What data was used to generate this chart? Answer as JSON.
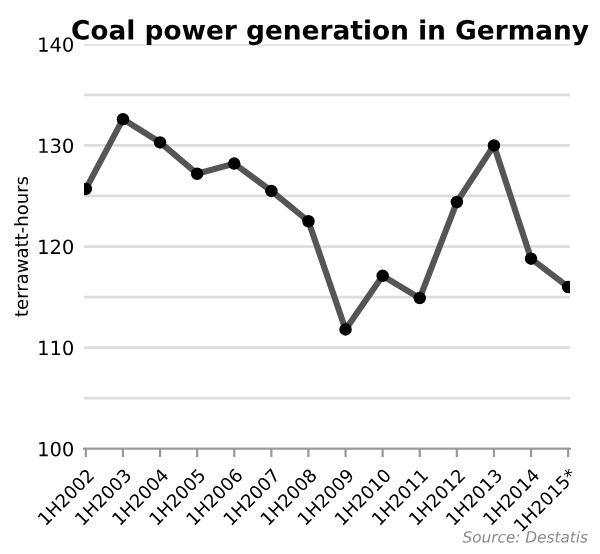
{
  "chart_data": {
    "type": "line",
    "title": "Coal power generation in Germany",
    "ylabel": "terrawatt-hours",
    "categories": [
      "1H2002",
      "1H2003",
      "1H2004",
      "1H2005",
      "1H2006",
      "1H2007",
      "1H2008",
      "1H2009",
      "1H2010",
      "1H2011",
      "1H2012",
      "1H2013",
      "1H2014",
      "1H2015*"
    ],
    "series": [
      {
        "color": "#555555",
        "values": [
          125.7,
          132.6,
          130.3,
          127.2,
          128.2,
          125.5,
          122.5,
          111.8,
          117.1,
          114.9,
          124.4,
          130.0,
          118.8,
          116.0
        ]
      }
    ],
    "ylim": [
      100,
      140
    ],
    "yticks": [
      100,
      {
        "value": 105,
        "label": null
      },
      110,
      {
        "value": 115,
        "label": null
      },
      120,
      {
        "value": 125,
        "label": null
      },
      130,
      {
        "value": 135,
        "label": null
      },
      140
    ],
    "grid": "y",
    "marker": "circle",
    "line_style": "solid",
    "legend": false,
    "annotations": [
      "Source: Destatis"
    ]
  }
}
